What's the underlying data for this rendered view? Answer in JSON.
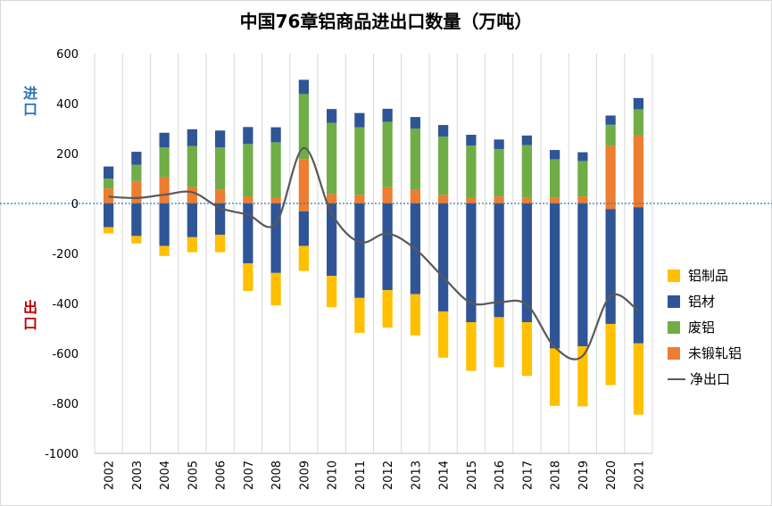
{
  "title": "中国76章铝商品进出口数量（万吨）",
  "side_labels": {
    "import": "进口",
    "export": "出口"
  },
  "colors": {
    "aluminum_products": "#ffc000",
    "aluminum_materials": "#2f5597",
    "scrap_aluminum": "#70ad47",
    "unwrought_aluminum": "#ed7d31",
    "net_export": "#595959",
    "zero_line": "#2e75b6"
  },
  "legend": [
    "铝制品",
    "铝材",
    "废铝",
    "未锻轧铝",
    "净出口"
  ],
  "chart_data": {
    "type": "bar",
    "stacked": true,
    "categories": [
      "2002",
      "2003",
      "2004",
      "2005",
      "2006",
      "2007",
      "2008",
      "2009",
      "2010",
      "2011",
      "2012",
      "2013",
      "2014",
      "2015",
      "2016",
      "2017",
      "2018",
      "2019",
      "2020",
      "2021"
    ],
    "ylim": [
      -1000,
      600
    ],
    "yticks": [
      600,
      400,
      200,
      0,
      -200,
      -400,
      -600,
      -800,
      -1000
    ],
    "grid": "vertical",
    "legend_position": "right",
    "import_series": [
      {
        "name": "未锻轧铝",
        "color_key": "unwrought_aluminum",
        "values": [
          60,
          90,
          105,
          65,
          55,
          28,
          25,
          178,
          38,
          35,
          65,
          55,
          35,
          25,
          28,
          22,
          22,
          28,
          230,
          275
        ]
      },
      {
        "name": "废铝",
        "color_key": "scrap_aluminum",
        "values": [
          40,
          65,
          120,
          165,
          170,
          210,
          220,
          260,
          285,
          270,
          262,
          245,
          233,
          207,
          190,
          212,
          155,
          142,
          85,
          102
        ]
      },
      {
        "name": "铝材",
        "color_key": "aluminum_materials",
        "values": [
          48,
          52,
          58,
          67,
          67,
          68,
          60,
          57,
          55,
          57,
          52,
          46,
          46,
          43,
          38,
          38,
          37,
          35,
          37,
          45
        ]
      }
    ],
    "export_series": [
      {
        "name": "未锻轧铝",
        "color_key": "unwrought_aluminum",
        "values": [
          0,
          0,
          0,
          0,
          0,
          0,
          0,
          -32,
          0,
          0,
          0,
          0,
          0,
          0,
          0,
          0,
          0,
          0,
          -22,
          -15
        ]
      },
      {
        "name": "铝材",
        "color_key": "aluminum_materials",
        "values": [
          -95,
          -130,
          -170,
          -135,
          -125,
          -60,
          -88,
          -138,
          -75,
          -78,
          -65,
          -62,
          -67,
          -60,
          -55,
          -55,
          -60,
          -62,
          0,
          0
        ]
      },
      {
        "name": "铝制品",
        "color_key": "aluminum_products",
        "values": [
          -25,
          -30,
          -40,
          -60,
          -70,
          -110,
          -130,
          -100,
          -125,
          -140,
          -150,
          -165,
          -185,
          -195,
          -200,
          -215,
          -230,
          -240,
          -245,
          -285
        ]
      }
    ],
    "export_totals_extra_materials": [
      0,
      0,
      0,
      0,
      0,
      -180,
      -190,
      0,
      -215,
      -300,
      -282,
      -301,
      -365,
      -415,
      -400,
      -420,
      -520,
      -510,
      -460,
      -545
    ],
    "net_export": {
      "name": "净出口",
      "values": [
        27,
        22,
        35,
        45,
        -18,
        -45,
        -80,
        222,
        -40,
        -155,
        -120,
        -182,
        -295,
        -398,
        -395,
        -405,
        -575,
        -610,
        -370,
        -430
      ]
    }
  }
}
